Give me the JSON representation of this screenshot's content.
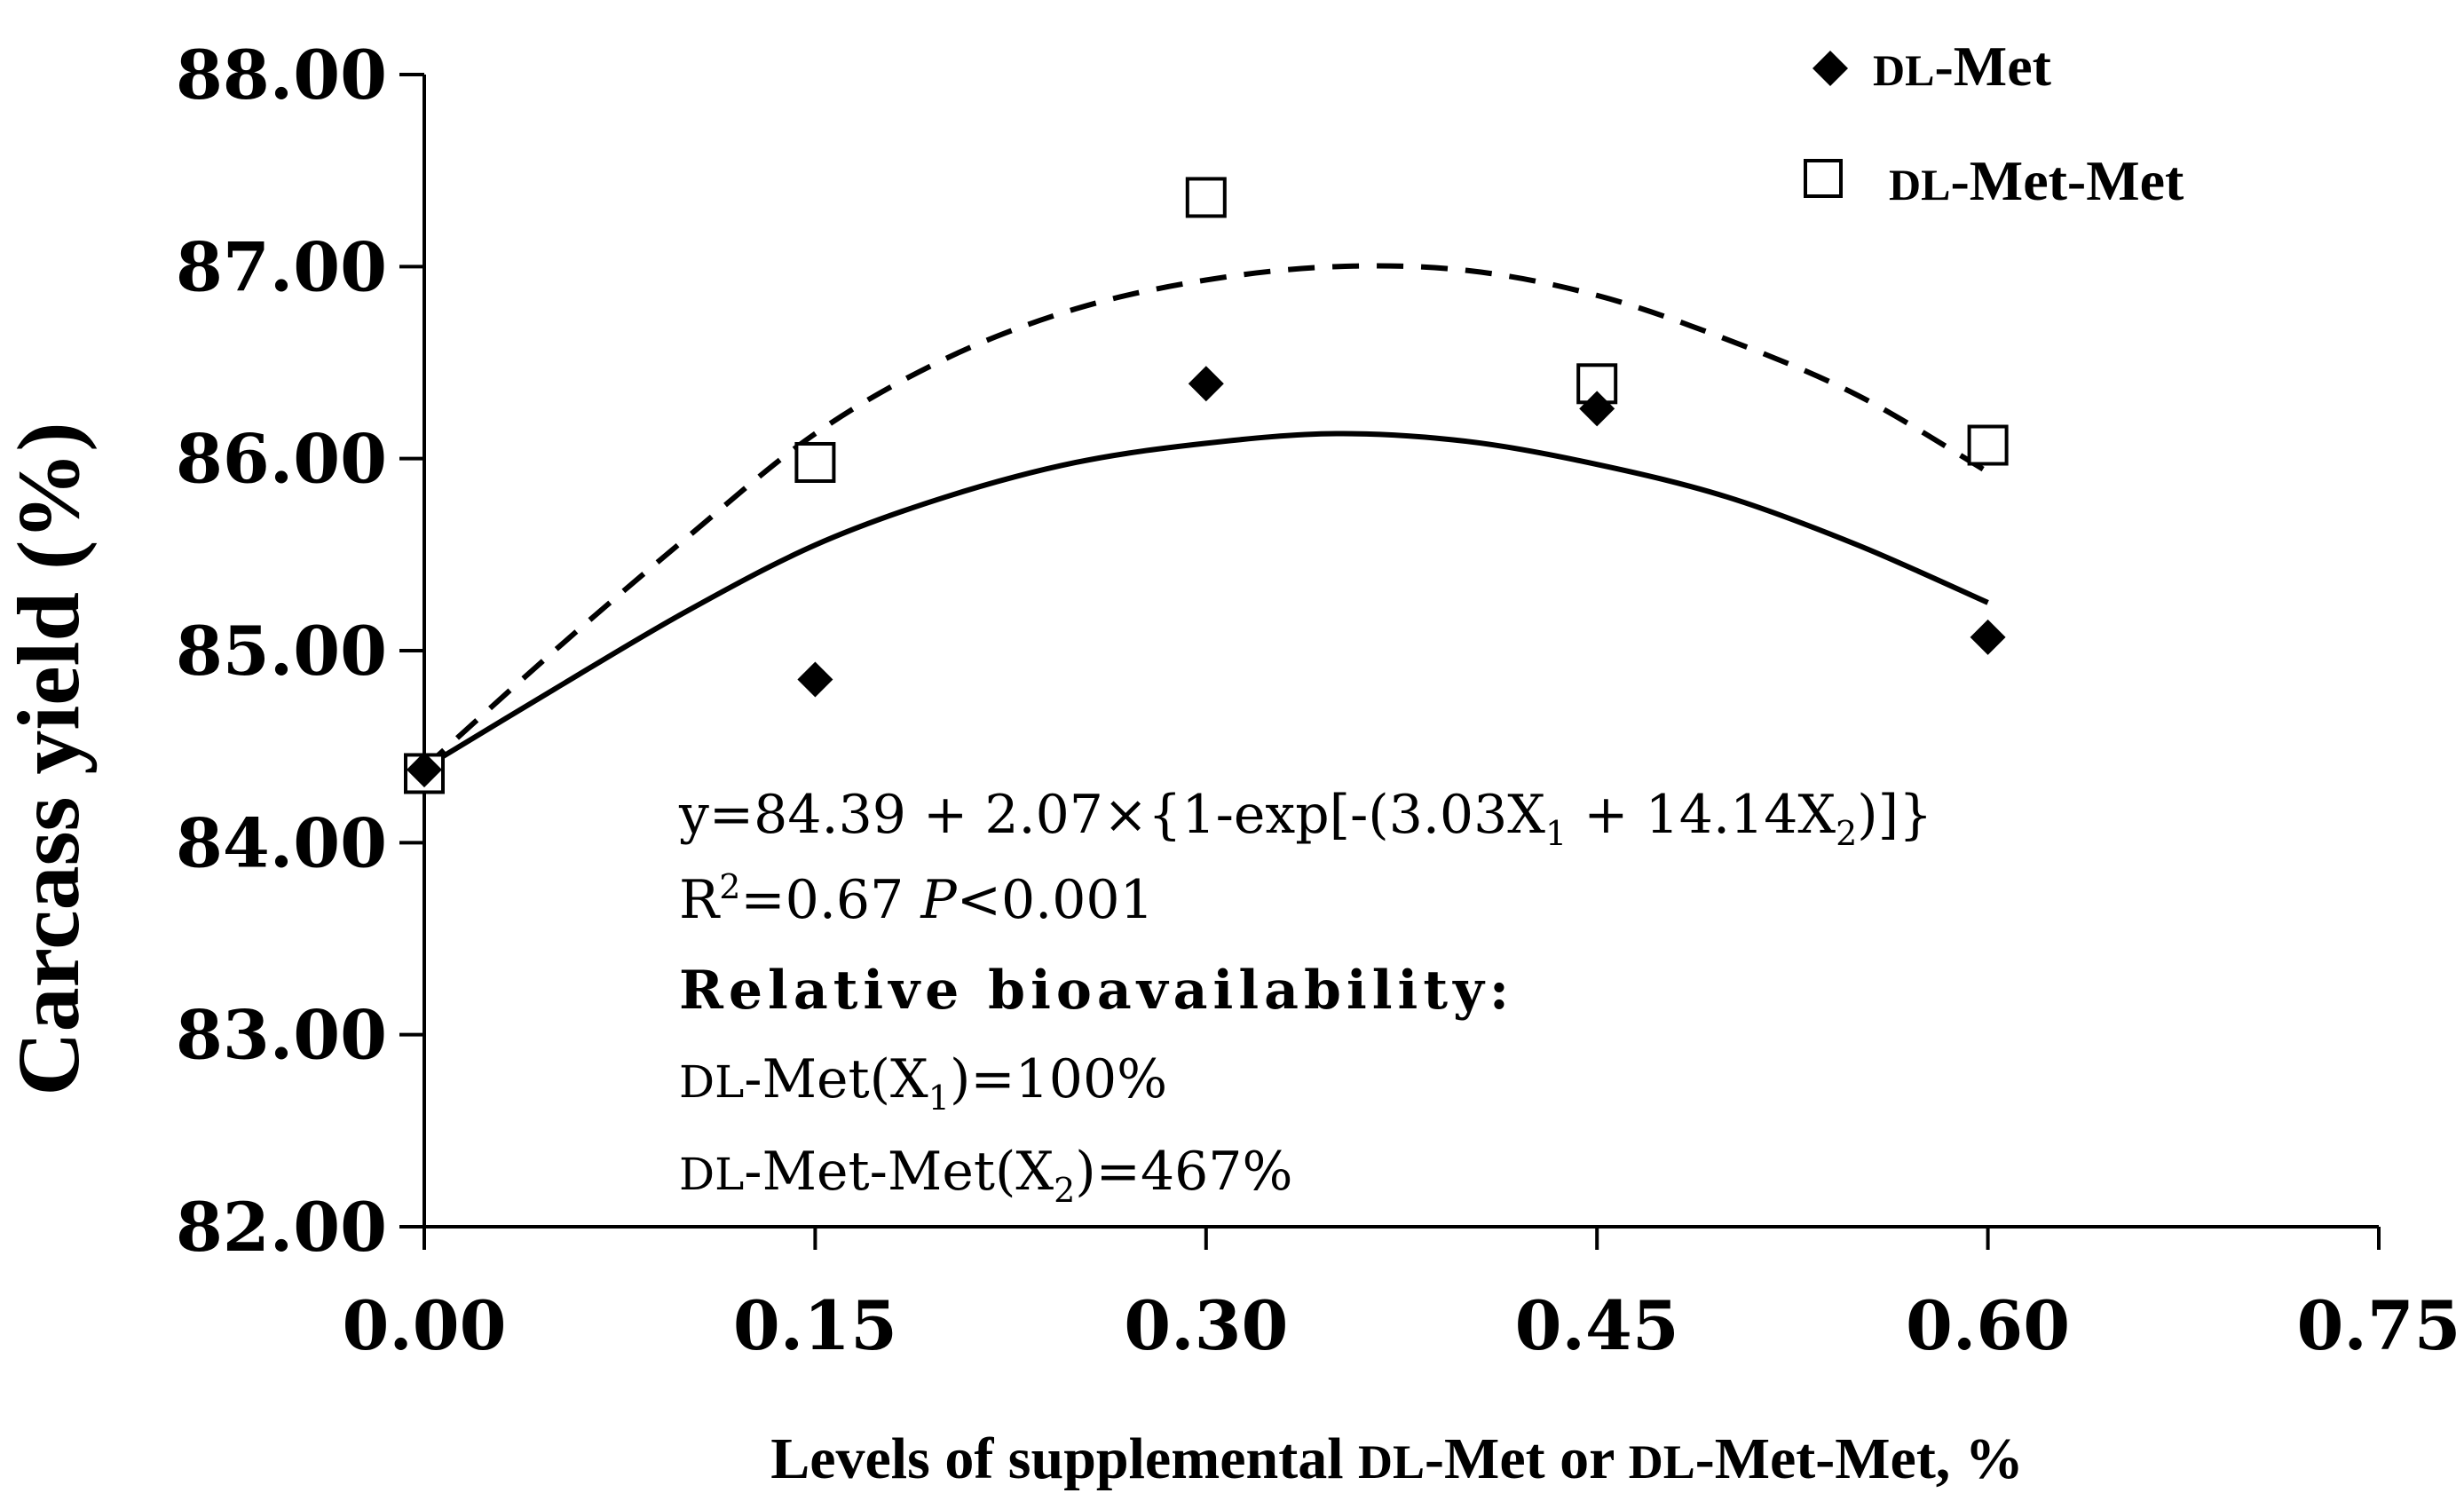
{
  "chart_data": {
    "type": "scatter",
    "title": "",
    "xlabel": {
      "pre": "Levels of supplemental ",
      "sc1": "DL",
      "mid": "-Met or ",
      "sc2": "DL",
      "post": "-Met-Met, %"
    },
    "ylabel": "Carcass yield (%)",
    "xlim": [
      0.0,
      0.75
    ],
    "ylim": [
      82.0,
      88.0
    ],
    "xticks": [
      "0.00",
      "0.15",
      "0.30",
      "0.45",
      "0.60",
      "0.75"
    ],
    "xtick_values": [
      0.0,
      0.15,
      0.3,
      0.45,
      0.6,
      0.75
    ],
    "yticks": [
      "82.00",
      "83.00",
      "84.00",
      "85.00",
      "86.00",
      "87.00",
      "88.00"
    ],
    "ytick_values": [
      82.0,
      83.0,
      84.0,
      85.0,
      86.0,
      87.0,
      88.0
    ],
    "series": [
      {
        "name": "DL-Met",
        "name_sc": "DL",
        "name_rest": "-Met",
        "marker": "diamond",
        "x": [
          0.0,
          0.15,
          0.3,
          0.45,
          0.6
        ],
        "y": [
          84.38,
          84.85,
          86.39,
          86.26,
          85.07
        ],
        "fit": {
          "style": "solid",
          "x_end": 0.6,
          "curve": [
            [
              0.0,
              84.39
            ],
            [
              0.05,
              84.8
            ],
            [
              0.1,
              85.2
            ],
            [
              0.15,
              85.55
            ],
            [
              0.2,
              85.8
            ],
            [
              0.25,
              85.98
            ],
            [
              0.3,
              86.08
            ],
            [
              0.35,
              86.13
            ],
            [
              0.4,
              86.09
            ],
            [
              0.45,
              85.97
            ],
            [
              0.5,
              85.8
            ],
            [
              0.55,
              85.55
            ],
            [
              0.6,
              85.25
            ]
          ]
        }
      },
      {
        "name": "DL-Met-Met",
        "name_sc": "DL",
        "name_rest": "-Met-Met",
        "marker": "open-square",
        "x": [
          0.0,
          0.15,
          0.3,
          0.45,
          0.6
        ],
        "y": [
          84.36,
          85.98,
          87.36,
          86.39,
          86.07
        ],
        "fit": {
          "style": "dashed",
          "x_end": 0.6,
          "curve": [
            [
              0.0,
              84.39
            ],
            [
              0.05,
              85.0
            ],
            [
              0.1,
              85.58
            ],
            [
              0.15,
              86.13
            ],
            [
              0.2,
              86.52
            ],
            [
              0.25,
              86.78
            ],
            [
              0.3,
              86.93
            ],
            [
              0.35,
              87.0
            ],
            [
              0.4,
              86.98
            ],
            [
              0.45,
              86.85
            ],
            [
              0.5,
              86.62
            ],
            [
              0.55,
              86.33
            ],
            [
              0.6,
              85.93
            ]
          ]
        }
      }
    ],
    "legend_position": "top-right",
    "annotations": {
      "equation": {
        "lead": "y=84.39 + 2.07×{1-exp[-(3.03X",
        "sub1": "1",
        "mid": " + 14.14X",
        "sub2": "2",
        "tail": ")]}"
      },
      "r2": {
        "r": "R",
        "sup": "2",
        "val": "=0.67 ",
        "p": "P",
        "ptail": "<0.001"
      },
      "rb_title": "Relative bioavailability:",
      "rb_line1": {
        "sc": "DL",
        "pre": "-Met(X",
        "sub": "1",
        "post": ")=100%"
      },
      "rb_line2": {
        "sc": "DL",
        "pre": "-Met-Met(X",
        "sub": "2",
        "post": ")=467%"
      }
    }
  }
}
